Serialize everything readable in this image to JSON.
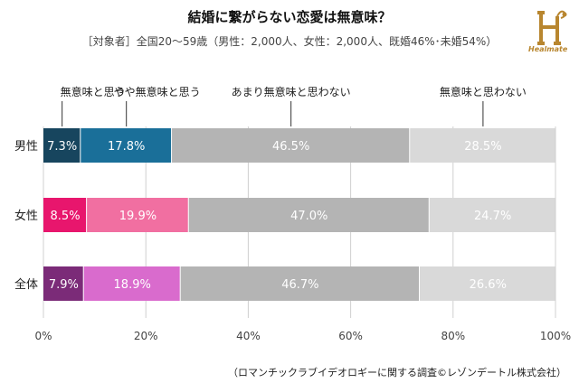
{
  "title": "結婚に繋がらない恋愛は無意味？",
  "subtitle": "［対象者］全国20～59歳（男性：2,000人、女性：2,000人、既婚46%･未婚54%）",
  "logo_text": "Healmate",
  "source": "（ロマンチックラブイデオロギーに関する調査©レゾンデートル株式会社）",
  "chart_data": {
    "type": "bar",
    "orientation": "horizontal-stacked-percent",
    "categories": [
      "男性",
      "女性",
      "全体"
    ],
    "legend": [
      "無意味と思う",
      "やや無意味と思う",
      "あまり無意味と思わない",
      "無意味と思わない"
    ],
    "series": [
      {
        "name": "無意味と思う",
        "values": [
          7.3,
          8.5,
          7.9
        ],
        "labels": [
          "7.3%",
          "8.5%",
          "7.9%"
        ]
      },
      {
        "name": "やや無意味と思う",
        "values": [
          17.8,
          19.9,
          18.9
        ],
        "labels": [
          "17.8%",
          "19.9%",
          "18.9%"
        ]
      },
      {
        "name": "あまり無意味と思わない",
        "values": [
          46.5,
          47.0,
          46.7
        ],
        "labels": [
          "46.5%",
          "47.0%",
          "46.7%"
        ]
      },
      {
        "name": "無意味と思わない",
        "values": [
          28.5,
          24.7,
          26.6
        ],
        "labels": [
          "28.5%",
          "24.7%",
          "26.6%"
        ]
      }
    ],
    "colors": [
      [
        "#17455e",
        "#1a6f99",
        "#b4b4b4",
        "#d9d9d9"
      ],
      [
        "#e8166d",
        "#f16fa1",
        "#b4b4b4",
        "#d9d9d9"
      ],
      [
        "#7b2b78",
        "#d96bcd",
        "#b4b4b4",
        "#d9d9d9"
      ]
    ],
    "xaxis_ticks": [
      "0%",
      "20%",
      "40%",
      "60%",
      "80%",
      "100%"
    ],
    "xlim": [
      0,
      100
    ],
    "grid": true
  }
}
